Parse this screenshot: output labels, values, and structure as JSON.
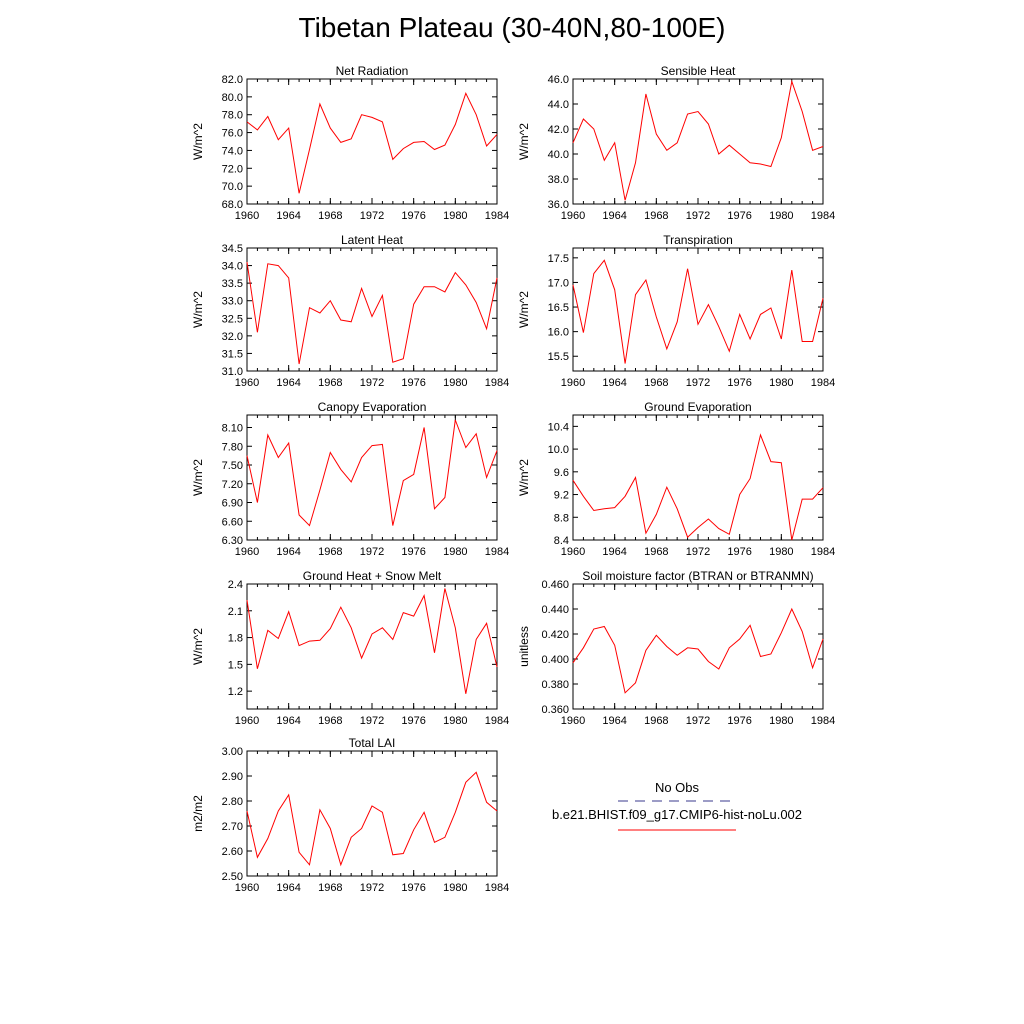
{
  "title": "Tibetan Plateau (30-40N,80-100E)",
  "legend": {
    "obs_label": "No Obs",
    "obs_color": "#3a3a8c",
    "model_label": "b.e21.BHIST.f09_g17.CMIP6-hist-noLu.002",
    "model_color": "#ff0000"
  },
  "chart_data": [
    {
      "type": "line",
      "title": "Net Radiation",
      "ylabel": "W/m^2",
      "ylim": [
        68.0,
        82.0
      ],
      "yticks": [
        "68.0",
        "70.0",
        "72.0",
        "74.0",
        "76.0",
        "78.0",
        "80.0",
        "82.0"
      ],
      "xlim": [
        1960,
        1984
      ],
      "xticks": [
        "1960",
        "1964",
        "1968",
        "1972",
        "1976",
        "1980",
        "1984"
      ],
      "series": [
        {
          "x": [
            1960,
            1961,
            1962,
            1963,
            1964,
            1965,
            1966,
            1967,
            1968,
            1969,
            1970,
            1971,
            1972,
            1973,
            1974,
            1975,
            1976,
            1977,
            1978,
            1979,
            1980,
            1981,
            1982,
            1983,
            1984
          ],
          "y": [
            77.2,
            76.3,
            77.8,
            75.2,
            76.5,
            69.2,
            74.1,
            79.2,
            76.5,
            74.9,
            75.3,
            78.0,
            77.7,
            77.2,
            73.0,
            74.2,
            74.9,
            75.0,
            74.1,
            74.6,
            76.9,
            80.4,
            78.0,
            74.5,
            75.8
          ]
        }
      ]
    },
    {
      "type": "line",
      "title": "Sensible Heat",
      "ylabel": "W/m^2",
      "ylim": [
        36.0,
        46.0
      ],
      "yticks": [
        "36.0",
        "38.0",
        "40.0",
        "42.0",
        "44.0",
        "46.0"
      ],
      "xlim": [
        1960,
        1984
      ],
      "xticks": [
        "1960",
        "1964",
        "1968",
        "1972",
        "1976",
        "1980",
        "1984"
      ],
      "series": [
        {
          "x": [
            1960,
            1961,
            1962,
            1963,
            1964,
            1965,
            1966,
            1967,
            1968,
            1969,
            1970,
            1971,
            1972,
            1973,
            1974,
            1975,
            1976,
            1977,
            1978,
            1979,
            1980,
            1981,
            1982,
            1983,
            1984
          ],
          "y": [
            40.9,
            42.8,
            42.0,
            39.5,
            40.9,
            36.3,
            39.3,
            44.8,
            41.6,
            40.3,
            40.9,
            43.2,
            43.4,
            42.4,
            40.0,
            40.7,
            40.0,
            39.3,
            39.2,
            39.0,
            41.3,
            45.8,
            43.4,
            40.3,
            40.6
          ]
        }
      ]
    },
    {
      "type": "line",
      "title": "Latent Heat",
      "ylabel": "W/m^2",
      "ylim": [
        31.0,
        34.5
      ],
      "yticks": [
        "31.0",
        "31.5",
        "32.0",
        "32.5",
        "33.0",
        "33.5",
        "34.0",
        "34.5"
      ],
      "xlim": [
        1960,
        1984
      ],
      "xticks": [
        "1960",
        "1964",
        "1968",
        "1972",
        "1976",
        "1980",
        "1984"
      ],
      "series": [
        {
          "x": [
            1960,
            1961,
            1962,
            1963,
            1964,
            1965,
            1966,
            1967,
            1968,
            1969,
            1970,
            1971,
            1972,
            1973,
            1974,
            1975,
            1976,
            1977,
            1978,
            1979,
            1980,
            1981,
            1982,
            1983,
            1984
          ],
          "y": [
            34.1,
            32.1,
            34.05,
            34.0,
            33.65,
            31.2,
            32.8,
            32.65,
            33.0,
            32.45,
            32.4,
            33.35,
            32.55,
            33.15,
            31.25,
            31.35,
            32.9,
            33.4,
            33.4,
            33.25,
            33.8,
            33.45,
            32.95,
            32.2,
            33.65
          ]
        }
      ]
    },
    {
      "type": "line",
      "title": "Transpiration",
      "ylabel": "W/m^2",
      "ylim": [
        15.2,
        17.7
      ],
      "yticks": [
        "15.5",
        "16.0",
        "16.5",
        "17.0",
        "17.5"
      ],
      "xlim": [
        1960,
        1984
      ],
      "xticks": [
        "1960",
        "1964",
        "1968",
        "1972",
        "1976",
        "1980",
        "1984"
      ],
      "series": [
        {
          "x": [
            1960,
            1961,
            1962,
            1963,
            1964,
            1965,
            1966,
            1967,
            1968,
            1969,
            1970,
            1971,
            1972,
            1973,
            1974,
            1975,
            1976,
            1977,
            1978,
            1979,
            1980,
            1981,
            1982,
            1983,
            1984
          ],
          "y": [
            16.95,
            15.98,
            17.18,
            17.45,
            16.85,
            15.35,
            16.75,
            17.05,
            16.3,
            15.65,
            16.2,
            17.28,
            16.15,
            16.55,
            16.1,
            15.6,
            16.35,
            15.85,
            16.35,
            16.48,
            15.85,
            17.25,
            15.8,
            15.8,
            16.68
          ]
        }
      ]
    },
    {
      "type": "line",
      "title": "Canopy Evaporation",
      "ylabel": "W/m^2",
      "ylim": [
        6.3,
        8.3
      ],
      "yticks": [
        "6.30",
        "6.60",
        "6.90",
        "7.20",
        "7.50",
        "7.80",
        "8.10"
      ],
      "xlim": [
        1960,
        1984
      ],
      "xticks": [
        "1960",
        "1964",
        "1968",
        "1972",
        "1976",
        "1980",
        "1984"
      ],
      "series": [
        {
          "x": [
            1960,
            1961,
            1962,
            1963,
            1964,
            1965,
            1966,
            1967,
            1968,
            1969,
            1970,
            1971,
            1972,
            1973,
            1974,
            1975,
            1976,
            1977,
            1978,
            1979,
            1980,
            1981,
            1982,
            1983,
            1984
          ],
          "y": [
            7.65,
            6.9,
            7.98,
            7.62,
            7.85,
            6.7,
            6.53,
            7.1,
            7.7,
            7.43,
            7.23,
            7.62,
            7.81,
            7.83,
            6.53,
            7.25,
            7.35,
            8.1,
            6.8,
            6.98,
            8.22,
            7.78,
            8.0,
            7.3,
            7.73
          ]
        }
      ]
    },
    {
      "type": "line",
      "title": "Ground Evaporation",
      "ylabel": "W/m^2",
      "ylim": [
        8.4,
        10.6
      ],
      "yticks": [
        "8.4",
        "8.8",
        "9.2",
        "9.6",
        "10.0",
        "10.4"
      ],
      "xlim": [
        1960,
        1984
      ],
      "xticks": [
        "1960",
        "1964",
        "1968",
        "1972",
        "1976",
        "1980",
        "1984"
      ],
      "series": [
        {
          "x": [
            1960,
            1961,
            1962,
            1963,
            1964,
            1965,
            1966,
            1967,
            1968,
            1969,
            1970,
            1971,
            1972,
            1973,
            1974,
            1975,
            1976,
            1977,
            1978,
            1979,
            1980,
            1981,
            1982,
            1983,
            1984
          ],
          "y": [
            9.45,
            9.17,
            8.92,
            8.95,
            8.97,
            9.17,
            9.5,
            8.52,
            8.85,
            9.33,
            8.95,
            8.45,
            8.62,
            8.77,
            8.6,
            8.5,
            9.2,
            9.48,
            10.25,
            9.78,
            9.76,
            8.4,
            9.12,
            9.12,
            9.32
          ]
        }
      ]
    },
    {
      "type": "line",
      "title": "Ground Heat + Snow Melt",
      "ylabel": "W/m^2",
      "ylim": [
        1.0,
        2.4
      ],
      "yticks": [
        "1.2",
        "1.5",
        "1.8",
        "2.1",
        "2.4"
      ],
      "xlim": [
        1960,
        1984
      ],
      "xticks": [
        "1960",
        "1964",
        "1968",
        "1972",
        "1976",
        "1980",
        "1984"
      ],
      "series": [
        {
          "x": [
            1960,
            1961,
            1962,
            1963,
            1964,
            1965,
            1966,
            1967,
            1968,
            1969,
            1970,
            1971,
            1972,
            1973,
            1974,
            1975,
            1976,
            1977,
            1978,
            1979,
            1980,
            1981,
            1982,
            1983,
            1984
          ],
          "y": [
            2.22,
            1.45,
            1.88,
            1.79,
            2.09,
            1.71,
            1.76,
            1.77,
            1.9,
            2.14,
            1.91,
            1.57,
            1.84,
            1.91,
            1.78,
            2.08,
            2.04,
            2.27,
            1.63,
            2.35,
            1.91,
            1.17,
            1.78,
            1.96,
            1.47
          ]
        }
      ]
    },
    {
      "type": "line",
      "title": "Soil moisture factor (BTRAN or BTRANMN)",
      "ylabel": "unitless",
      "ylim": [
        0.36,
        0.46
      ],
      "yticks": [
        "0.360",
        "0.380",
        "0.400",
        "0.420",
        "0.440",
        "0.460"
      ],
      "xlim": [
        1960,
        1984
      ],
      "xticks": [
        "1960",
        "1964",
        "1968",
        "1972",
        "1976",
        "1980",
        "1984"
      ],
      "series": [
        {
          "x": [
            1960,
            1961,
            1962,
            1963,
            1964,
            1965,
            1966,
            1967,
            1968,
            1969,
            1970,
            1971,
            1972,
            1973,
            1974,
            1975,
            1976,
            1977,
            1978,
            1979,
            1980,
            1981,
            1982,
            1983,
            1984
          ],
          "y": [
            0.397,
            0.409,
            0.424,
            0.426,
            0.411,
            0.373,
            0.381,
            0.407,
            0.419,
            0.41,
            0.403,
            0.409,
            0.408,
            0.398,
            0.392,
            0.409,
            0.416,
            0.427,
            0.402,
            0.404,
            0.421,
            0.44,
            0.422,
            0.393,
            0.416
          ]
        }
      ]
    },
    {
      "type": "line",
      "title": "Total LAI",
      "ylabel": "m2/m2",
      "ylim": [
        2.5,
        3.0
      ],
      "yticks": [
        "2.50",
        "2.60",
        "2.70",
        "2.80",
        "2.90",
        "3.00"
      ],
      "xlim": [
        1960,
        1984
      ],
      "xticks": [
        "1960",
        "1964",
        "1968",
        "1972",
        "1976",
        "1980",
        "1984"
      ],
      "series": [
        {
          "x": [
            1960,
            1961,
            1962,
            1963,
            1964,
            1965,
            1966,
            1967,
            1968,
            1969,
            1970,
            1971,
            1972,
            1973,
            1974,
            1975,
            1976,
            1977,
            1978,
            1979,
            1980,
            1981,
            1982,
            1983,
            1984
          ],
          "y": [
            2.76,
            2.575,
            2.65,
            2.76,
            2.825,
            2.595,
            2.545,
            2.765,
            2.69,
            2.545,
            2.655,
            2.69,
            2.78,
            2.755,
            2.585,
            2.59,
            2.685,
            2.755,
            2.635,
            2.655,
            2.755,
            2.875,
            2.915,
            2.795,
            2.76
          ]
        }
      ]
    }
  ]
}
